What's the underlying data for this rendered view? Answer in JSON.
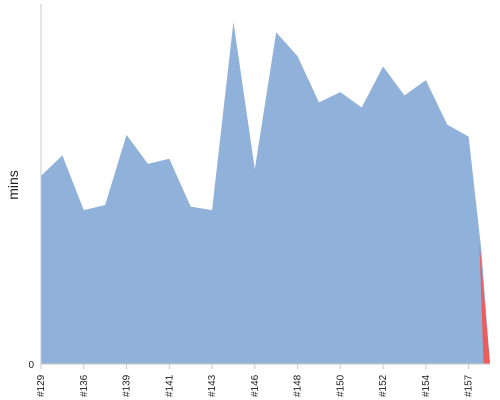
{
  "chart_data": {
    "type": "area",
    "ylabel": "mins",
    "xlabel": "",
    "title": "",
    "ylim": [
      0,
      100
    ],
    "y_ticks": [
      "0"
    ],
    "x_ticks": [
      "#129",
      "#136",
      "#139",
      "#141",
      "#143",
      "#146",
      "#148",
      "#150",
      "#152",
      "#154",
      "#157"
    ],
    "x_tick_positions": [
      0,
      2,
      4,
      6,
      8,
      10,
      12,
      14,
      16,
      18,
      20
    ],
    "points": [
      {
        "x": 0.0,
        "y": 55
      },
      {
        "x": 1.0,
        "y": 61
      },
      {
        "x": 2.0,
        "y": 45
      },
      {
        "x": 3.0,
        "y": 46.5
      },
      {
        "x": 4.0,
        "y": 67
      },
      {
        "x": 5.0,
        "y": 58.5
      },
      {
        "x": 6.0,
        "y": 60
      },
      {
        "x": 7.0,
        "y": 46
      },
      {
        "x": 8.0,
        "y": 45
      },
      {
        "x": 9.0,
        "y": 100
      },
      {
        "x": 10.0,
        "y": 57
      },
      {
        "x": 11.0,
        "y": 97
      },
      {
        "x": 12.0,
        "y": 90
      },
      {
        "x": 13.0,
        "y": 76.5
      },
      {
        "x": 14.0,
        "y": 79.5
      },
      {
        "x": 15.0,
        "y": 75
      },
      {
        "x": 16.0,
        "y": 87
      },
      {
        "x": 17.0,
        "y": 78.5
      },
      {
        "x": 18.0,
        "y": 83
      },
      {
        "x": 19.0,
        "y": 70
      },
      {
        "x": 20.0,
        "y": 66.5
      },
      {
        "x": 20.6,
        "y": 33
      },
      {
        "x": 21.0,
        "y": 0
      }
    ],
    "failure_segment": [
      {
        "x": 20.5,
        "y": 36
      },
      {
        "x": 20.7,
        "y": 0
      },
      {
        "x": 21.0,
        "y": 0
      },
      {
        "x": 21.0,
        "y": 0
      }
    ],
    "colors": {
      "success": "#8fb1da",
      "failure": "#ef5a5a",
      "axis": "#c8c8c8",
      "text": "#222222"
    }
  }
}
